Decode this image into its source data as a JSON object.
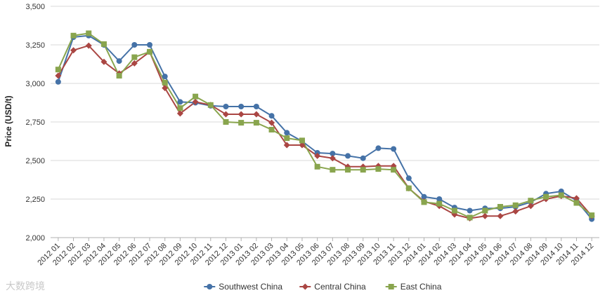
{
  "chart_data": {
    "type": "line",
    "ylabel": "Price (USD/t)",
    "ylim": [
      2000,
      3500
    ],
    "yticks": [
      2000,
      2250,
      2500,
      2750,
      3000,
      3250,
      3500
    ],
    "ytick_labels": [
      "2,000",
      "2,250",
      "2,500",
      "2,750",
      "3,000",
      "3,250",
      "3,500"
    ],
    "grid": "horizontal",
    "legend_position": "bottom-center",
    "categories": [
      "2012 01",
      "2012 02",
      "2012 03",
      "2012 04",
      "2012 05",
      "2012 06",
      "2012 07",
      "2012 08",
      "2012 09",
      "2012 10",
      "2012 11",
      "2012 12",
      "2013 01",
      "2013 02",
      "2013 03",
      "2013 04",
      "2013 05",
      "2013 06",
      "2013 07",
      "2013 08",
      "2013 09",
      "2013 10",
      "2013 11",
      "2013 12",
      "2014 01",
      "2014 02",
      "2014 03",
      "2014 04",
      "2014 05",
      "2014 06",
      "2014 07",
      "2014 08",
      "2014 09",
      "2014 10",
      "2014 11",
      "2014 12"
    ],
    "series": [
      {
        "name": "Southwest China",
        "color": "#4572a7",
        "marker": "circle",
        "values": [
          3010,
          3300,
          3310,
          3250,
          3145,
          3250,
          3250,
          3045,
          2880,
          2875,
          2855,
          2850,
          2850,
          2850,
          2790,
          2680,
          2625,
          2550,
          2545,
          2530,
          2515,
          2580,
          2575,
          2385,
          2265,
          2250,
          2195,
          2175,
          2190,
          2190,
          2200,
          2230,
          2285,
          2300,
          2240,
          2120
        ]
      },
      {
        "name": "Central China",
        "color": "#aa4643",
        "marker": "diamond",
        "values": [
          3050,
          3215,
          3245,
          3140,
          3065,
          3130,
          3205,
          2970,
          2805,
          2880,
          2860,
          2800,
          2800,
          2800,
          2745,
          2600,
          2600,
          2530,
          2515,
          2460,
          2460,
          2465,
          2465,
          2320,
          2235,
          2205,
          2150,
          2125,
          2140,
          2140,
          2170,
          2205,
          2250,
          2270,
          2255,
          2140
        ]
      },
      {
        "name": "East China",
        "color": "#89a54e",
        "marker": "square",
        "values": [
          3090,
          3310,
          3325,
          3255,
          3050,
          3170,
          3205,
          3005,
          2840,
          2915,
          2860,
          2750,
          2745,
          2745,
          2700,
          2645,
          2630,
          2460,
          2440,
          2440,
          2440,
          2445,
          2440,
          2320,
          2230,
          2220,
          2175,
          2130,
          2175,
          2200,
          2210,
          2240,
          2265,
          2275,
          2225,
          2145
        ]
      }
    ]
  },
  "watermark": "大数跨境"
}
